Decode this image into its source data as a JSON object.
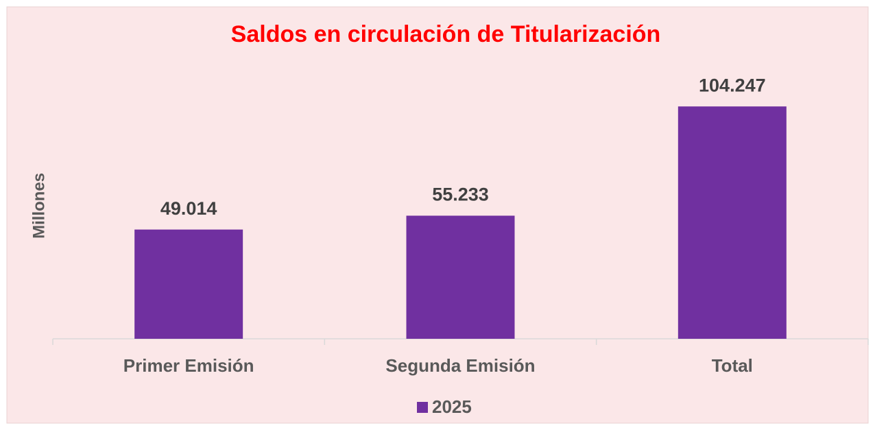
{
  "chart_data": {
    "type": "bar",
    "title": "Saldos en circulación de Titularización",
    "y_label": "Millones",
    "categories": [
      "Primer Emisión",
      "Segunda Emisión",
      "Total"
    ],
    "series": [
      {
        "name": "2025",
        "color": "#7030a0",
        "values": [
          49.014,
          55.233,
          104.247
        ]
      }
    ],
    "ylim": [
      0,
      120
    ],
    "legend": "bottom"
  }
}
